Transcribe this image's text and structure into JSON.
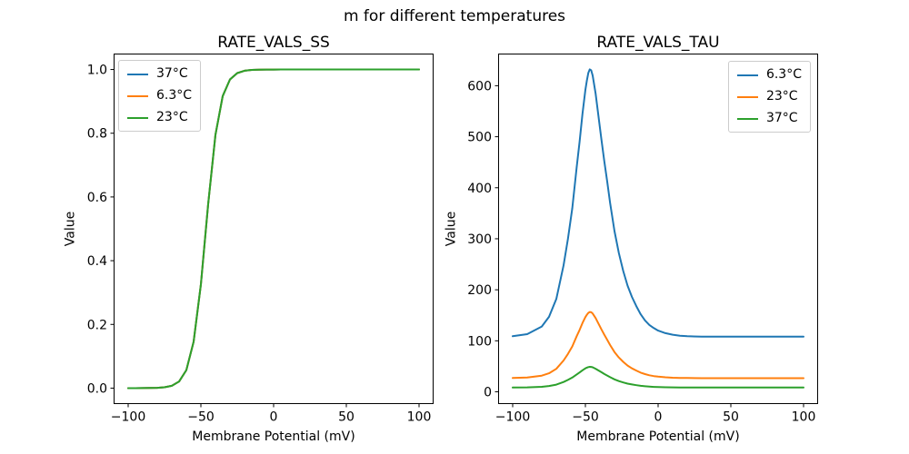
{
  "figure": {
    "suptitle": "m for different temperatures",
    "background": "#ffffff"
  },
  "colors": {
    "series_blue": "#1f77b4",
    "series_orange": "#ff7f0e",
    "series_green": "#2ca02c",
    "spine": "#000000",
    "legend_border": "#cccccc",
    "text": "#000000"
  },
  "chart_data": [
    {
      "type": "line",
      "title": "RATE_VALS_SS",
      "xlabel": "Membrane Potential (mV)",
      "ylabel": "Value",
      "grid": false,
      "xlim": [
        -110,
        110
      ],
      "ylim": [
        -0.05,
        1.05
      ],
      "xticks": {
        "values": [
          -100,
          -50,
          0,
          50,
          100
        ],
        "labels": [
          "−100",
          "−50",
          "0",
          "50",
          "100"
        ]
      },
      "yticks": {
        "values": [
          0,
          0.2,
          0.4,
          0.6,
          0.8,
          1.0
        ],
        "labels": [
          "0.0",
          "0.2",
          "0.4",
          "0.6",
          "0.8",
          "1.0"
        ]
      },
      "legend": {
        "position": "upper-left",
        "entries": [
          {
            "label": "37°C",
            "color": "#1f77b4"
          },
          {
            "label": "6.3°C",
            "color": "#ff7f0e"
          },
          {
            "label": "23°C",
            "color": "#2ca02c"
          }
        ]
      },
      "x": [
        -100,
        -95,
        -90,
        -85,
        -80,
        -75,
        -70,
        -65,
        -60,
        -55,
        -50,
        -45,
        -40,
        -35,
        -30,
        -25,
        -20,
        -15,
        -10,
        -5,
        0,
        5,
        10,
        15,
        20,
        25,
        30,
        35,
        40,
        45,
        50,
        55,
        60,
        65,
        70,
        75,
        80,
        85,
        90,
        95,
        100
      ],
      "series": [
        {
          "name": "37°C",
          "color": "#1f77b4",
          "values": [
            0,
            0,
            0.0001,
            0.0003,
            0.0009,
            0.0026,
            0.0074,
            0.0208,
            0.0566,
            0.1454,
            0.3254,
            0.5775,
            0.7948,
            0.9165,
            0.9688,
            0.9888,
            0.996,
            0.9986,
            0.9995,
            0.9998,
            0.9999,
            1,
            1,
            1,
            1,
            1,
            1,
            1,
            1,
            1,
            1,
            1,
            1,
            1,
            1,
            1,
            1,
            1,
            1,
            1,
            1
          ]
        },
        {
          "name": "6.3°C",
          "color": "#ff7f0e",
          "values": [
            0,
            0,
            0.0001,
            0.0003,
            0.0009,
            0.0026,
            0.0074,
            0.0208,
            0.0566,
            0.1454,
            0.3254,
            0.5775,
            0.7948,
            0.9165,
            0.9688,
            0.9888,
            0.996,
            0.9986,
            0.9995,
            0.9998,
            0.9999,
            1,
            1,
            1,
            1,
            1,
            1,
            1,
            1,
            1,
            1,
            1,
            1,
            1,
            1,
            1,
            1,
            1,
            1,
            1,
            1
          ]
        },
        {
          "name": "23°C",
          "color": "#2ca02c",
          "values": [
            0,
            0,
            0.0001,
            0.0003,
            0.0009,
            0.0026,
            0.0074,
            0.0208,
            0.0566,
            0.1454,
            0.3254,
            0.5775,
            0.7948,
            0.9165,
            0.9688,
            0.9888,
            0.996,
            0.9986,
            0.9995,
            0.9998,
            0.9999,
            1,
            1,
            1,
            1,
            1,
            1,
            1,
            1,
            1,
            1,
            1,
            1,
            1,
            1,
            1,
            1,
            1,
            1,
            1,
            1
          ]
        }
      ]
    },
    {
      "type": "line",
      "title": "RATE_VALS_TAU",
      "xlabel": "Membrane Potential (mV)",
      "ylabel": "Value",
      "grid": false,
      "xlim": [
        -110,
        110
      ],
      "ylim": [
        -24,
        663
      ],
      "xticks": {
        "values": [
          -100,
          -50,
          0,
          50,
          100
        ],
        "labels": [
          "−100",
          "−50",
          "0",
          "50",
          "100"
        ]
      },
      "yticks": {
        "values": [
          0,
          100,
          200,
          300,
          400,
          500,
          600
        ],
        "labels": [
          "0",
          "100",
          "200",
          "300",
          "400",
          "500",
          "600"
        ]
      },
      "legend": {
        "position": "upper-right",
        "entries": [
          {
            "label": "6.3°C",
            "color": "#1f77b4"
          },
          {
            "label": "23°C",
            "color": "#ff7f0e"
          },
          {
            "label": "37°C",
            "color": "#2ca02c"
          }
        ]
      },
      "x": [
        -100,
        -90,
        -80,
        -75,
        -70,
        -65,
        -62,
        -59,
        -56,
        -54,
        -52,
        -50,
        -49,
        -48,
        -47,
        -46,
        -45,
        -43,
        -41,
        -39,
        -37,
        -35,
        -33,
        -30,
        -27,
        -24,
        -21,
        -18,
        -15,
        -12,
        -9,
        -6,
        -3,
        0,
        5,
        10,
        15,
        20,
        30,
        40,
        50,
        60,
        80,
        100
      ],
      "series": [
        {
          "name": "6.3°C",
          "color": "#1f77b4",
          "values": [
            109,
            113,
            128,
            147,
            182,
            248,
            300,
            360,
            440,
            490,
            545,
            592,
            610,
            625,
            632,
            630,
            620,
            585,
            540,
            495,
            452,
            412,
            370,
            315,
            272,
            237,
            208,
            186,
            168,
            152,
            140,
            131,
            125,
            120,
            115,
            112,
            110,
            109,
            108,
            108,
            108,
            108,
            108,
            108
          ]
        },
        {
          "name": "23°C",
          "color": "#ff7f0e",
          "values": [
            27,
            28,
            31.7,
            36.4,
            45,
            61.4,
            74.3,
            89.1,
            108.9,
            121.3,
            134.9,
            146.5,
            151,
            154.7,
            156.4,
            155.9,
            153.5,
            144.8,
            133.7,
            122.5,
            111.9,
            102,
            91.6,
            78,
            67.3,
            58.7,
            51.5,
            46,
            41.6,
            37.6,
            34.7,
            32.4,
            30.9,
            29.7,
            28.5,
            27.7,
            27.2,
            27,
            26.7,
            26.7,
            26.7,
            26.7,
            26.7,
            26.7
          ]
        },
        {
          "name": "37°C",
          "color": "#2ca02c",
          "values": [
            8.4,
            8.8,
            9.9,
            11.4,
            14.1,
            19.2,
            23.3,
            27.9,
            34.1,
            38,
            42.2,
            45.9,
            47.3,
            48.4,
            49,
            48.8,
            48.1,
            45.3,
            41.9,
            38.4,
            35,
            31.9,
            28.7,
            24.4,
            21.1,
            18.4,
            16.1,
            14.4,
            13,
            11.8,
            10.9,
            10.2,
            9.7,
            9.3,
            8.9,
            8.7,
            8.5,
            8.4,
            8.4,
            8.4,
            8.4,
            8.4,
            8.4,
            8.4
          ]
        }
      ]
    }
  ]
}
